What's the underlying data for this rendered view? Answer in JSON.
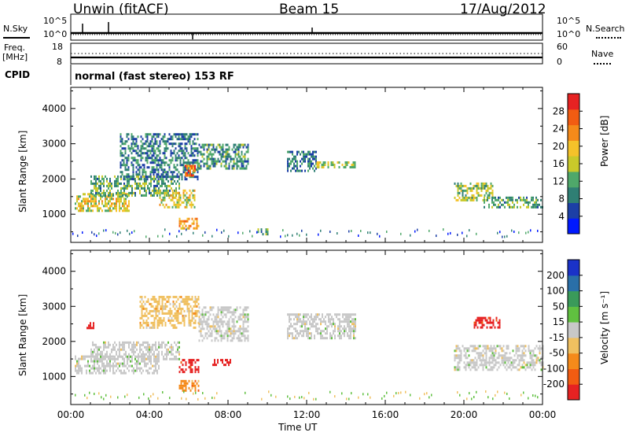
{
  "header": {
    "station": "Unwin (fitACF)",
    "beam": "Beam 15",
    "date": "17/Aug/2012"
  },
  "sky_panel": {
    "left_label": "N.Sky",
    "right_label": "N.Search",
    "ytick_top": "10^5",
    "ytick_bottom": "10^0",
    "rtick_top": "10^5",
    "rtick_bottom": "10^0"
  },
  "freq_panel": {
    "left_label_1": "Freq.",
    "left_label_2": "[MHz]",
    "right_label": "Nave",
    "ytick_top": "18",
    "ytick_bottom": "8",
    "rtick_top": "60",
    "rtick_bottom": "0"
  },
  "cpid": {
    "label": "CPID",
    "text": "normal (fast stereo) 153 RF"
  },
  "x_axis": {
    "label": "Time UT",
    "ticks": [
      "00:00",
      "04:00",
      "08:00",
      "12:00",
      "16:00",
      "20:00",
      "00:00"
    ]
  },
  "colors": {
    "power": [
      "#0019ff",
      "#1c3fa6",
      "#2f7f74",
      "#4fa86a",
      "#c9c92a",
      "#f5c22a",
      "#f58a1a",
      "#f25c12",
      "#e62222"
    ],
    "velocity": [
      "#e62222",
      "#f25c12",
      "#f58a1a",
      "#f0c060",
      "#c8c8c8",
      "#60c040",
      "#3a9a5a",
      "#2a6fa8",
      "#1a32c8"
    ]
  },
  "chart_data": [
    {
      "type": "heatmap",
      "title": "",
      "xlabel": "Time UT",
      "ylabel": "Slant Range [km]",
      "x_ticks": [
        "00:00",
        "04:00",
        "08:00",
        "12:00",
        "16:00",
        "20:00",
        "00:00"
      ],
      "xlim_hours": [
        0,
        24
      ],
      "y_ticks": [
        1000,
        2000,
        3000,
        4000
      ],
      "ylim": [
        200,
        4600
      ],
      "colorbar": {
        "label": "Power [dB]",
        "ticks": [
          "4",
          "8",
          "12",
          "16",
          "20",
          "24",
          "28"
        ]
      },
      "regions": [
        {
          "t": [
            0.2,
            3.0
          ],
          "r": [
            1100,
            1600
          ],
          "level": 0.55
        },
        {
          "t": [
            1.0,
            5.5
          ],
          "r": [
            1500,
            2100
          ],
          "level": 0.35
        },
        {
          "t": [
            2.5,
            6.5
          ],
          "r": [
            2000,
            3300
          ],
          "level": 0.25
        },
        {
          "t": [
            4.5,
            6.3
          ],
          "r": [
            1200,
            1700
          ],
          "level": 0.55
        },
        {
          "t": [
            5.5,
            6.5
          ],
          "r": [
            600,
            900
          ],
          "level": 0.7
        },
        {
          "t": [
            5.8,
            6.3
          ],
          "r": [
            2100,
            2400
          ],
          "level": 0.85
        },
        {
          "t": [
            6.5,
            9.0
          ],
          "r": [
            2300,
            3000
          ],
          "level": 0.3
        },
        {
          "t": [
            11.0,
            12.5
          ],
          "r": [
            2200,
            2800
          ],
          "level": 0.25
        },
        {
          "t": [
            12.5,
            14.5
          ],
          "r": [
            2300,
            2500
          ],
          "level": 0.5
        },
        {
          "t": [
            19.5,
            21.5
          ],
          "r": [
            1400,
            1900
          ],
          "level": 0.45
        },
        {
          "t": [
            21.0,
            24.0
          ],
          "r": [
            1200,
            1500
          ],
          "level": 0.35
        },
        {
          "t": [
            9.5,
            10.0
          ],
          "r": [
            450,
            600
          ],
          "level": 0.4
        }
      ]
    },
    {
      "type": "heatmap",
      "title": "",
      "xlabel": "Time UT",
      "ylabel": "Slant Range [km]",
      "x_ticks": [
        "00:00",
        "04:00",
        "08:00",
        "12:00",
        "16:00",
        "20:00",
        "00:00"
      ],
      "xlim_hours": [
        0,
        24
      ],
      "y_ticks": [
        1000,
        2000,
        3000,
        4000
      ],
      "ylim": [
        200,
        4600
      ],
      "colorbar": {
        "label": "Velocity [m s⁻¹]",
        "ticks": [
          "200",
          "100",
          "50",
          "15",
          "-15",
          "-50",
          "-100",
          "-200"
        ]
      },
      "regions": [
        {
          "t": [
            0.2,
            4.5
          ],
          "r": [
            1100,
            1600
          ],
          "vclass": 4
        },
        {
          "t": [
            1.0,
            5.5
          ],
          "r": [
            1500,
            2000
          ],
          "vclass": 4
        },
        {
          "t": [
            3.5,
            6.5
          ],
          "r": [
            2400,
            3300
          ],
          "vclass": 3
        },
        {
          "t": [
            5.5,
            6.5
          ],
          "r": [
            1100,
            1500
          ],
          "vclass": 0
        },
        {
          "t": [
            5.5,
            6.5
          ],
          "r": [
            600,
            900
          ],
          "vclass": 2
        },
        {
          "t": [
            6.5,
            9.0
          ],
          "r": [
            2000,
            3000
          ],
          "vclass": 4
        },
        {
          "t": [
            7.2,
            8.2
          ],
          "r": [
            1350,
            1500
          ],
          "vclass": 0
        },
        {
          "t": [
            11.0,
            14.5
          ],
          "r": [
            2100,
            2800
          ],
          "vclass": 4
        },
        {
          "t": [
            19.5,
            24.0
          ],
          "r": [
            1200,
            1900
          ],
          "vclass": 4
        },
        {
          "t": [
            20.5,
            21.8
          ],
          "r": [
            2400,
            2700
          ],
          "vclass": 0
        },
        {
          "t": [
            0.8,
            1.2
          ],
          "r": [
            2350,
            2550
          ],
          "vclass": 0
        }
      ]
    }
  ]
}
